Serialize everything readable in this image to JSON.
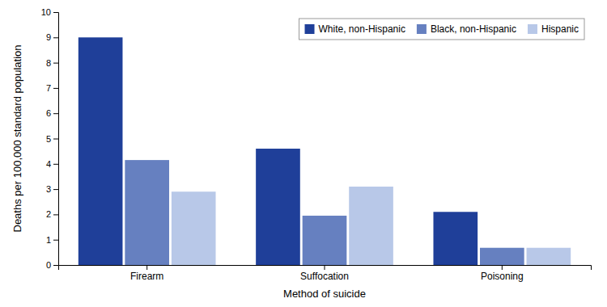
{
  "chart_data": {
    "type": "bar",
    "categories": [
      "Firearm",
      "Suffocation",
      "Poisoning"
    ],
    "series": [
      {
        "name": "White, non-Hispanic",
        "color": "#1f3f99",
        "values": [
          9.0,
          4.6,
          2.1
        ]
      },
      {
        "name": "Black, non-Hispanic",
        "color": "#6680c0",
        "values": [
          4.15,
          1.95,
          0.68
        ]
      },
      {
        "name": "Hispanic",
        "color": "#b8c8e8",
        "values": [
          2.9,
          3.1,
          0.68
        ]
      }
    ],
    "xlabel": "Method of suicide",
    "ylabel": "Deaths per 100,000 standard population",
    "ylim": [
      0,
      10
    ],
    "yticks": [
      0,
      1,
      2,
      3,
      4,
      5,
      6,
      7,
      8,
      9,
      10
    ],
    "grid": false,
    "legend": "upper right"
  }
}
